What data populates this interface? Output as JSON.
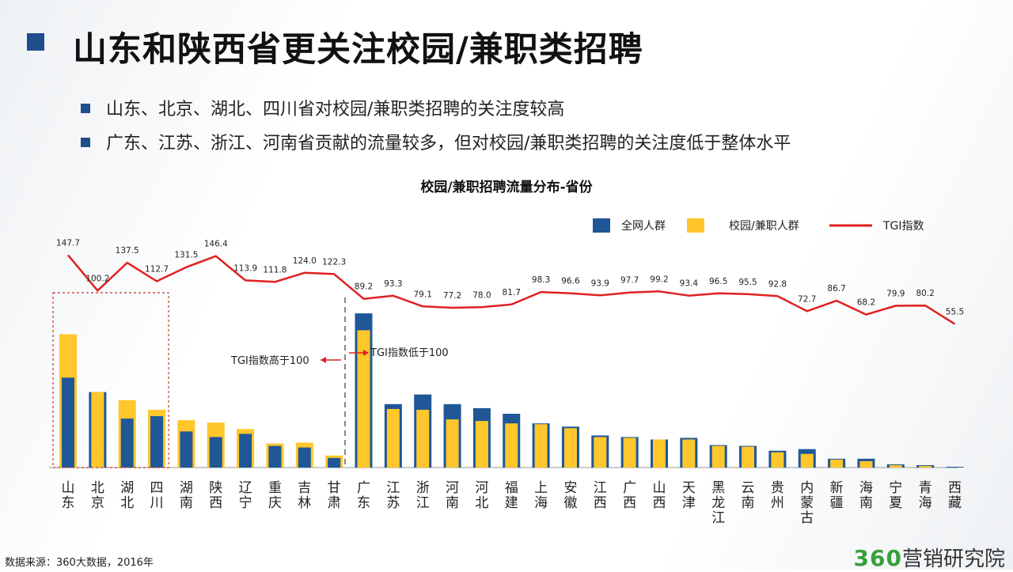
{
  "slide": {
    "title": "山东和陕西省更关注校园/兼职类招聘",
    "bullets": [
      "山东、北京、湖北、四川省对校园/兼职类招聘的关注度较高",
      "广东、江苏、浙江、河南省贡献的流量较多，但对校园/兼职类招聘的关注度低于整体水平"
    ],
    "source": "数据来源：360大数据，2016年",
    "logo_num": "360",
    "logo_text": "营销研究院"
  },
  "colors": {
    "blue": "#1f5797",
    "yellow": "#ffc72c",
    "red": "#e02020",
    "accent": "#1f4e8c"
  },
  "chart_data": {
    "type": "bar",
    "title": "校园/兼职招聘流量分布-省份",
    "categories": [
      "山东",
      "北京",
      "湖北",
      "四川",
      "湖南",
      "陕西",
      "辽宁",
      "重庆",
      "吉林",
      "甘肃",
      "广东",
      "江苏",
      "浙江",
      "河南",
      "河北",
      "福建",
      "上海",
      "安徽",
      "江西",
      "广西",
      "山西",
      "天津",
      "黑龙江",
      "云南",
      "贵州",
      "内蒙古",
      "新疆",
      "海南",
      "宁夏",
      "青海",
      "西藏"
    ],
    "series": [
      {
        "name": "全网人群",
        "type": "bar",
        "values": [
          5.6,
          4.7,
          3.05,
          3.2,
          2.25,
          1.9,
          2.1,
          1.35,
          1.25,
          0.6,
          9.6,
          3.95,
          4.55,
          3.95,
          3.7,
          3.35,
          2.75,
          2.55,
          2.0,
          1.9,
          1.75,
          1.85,
          1.4,
          1.35,
          1.05,
          1.15,
          0.55,
          0.55,
          0.2,
          0.15,
          0.05
        ]
      },
      {
        "name": "校园/兼职人群",
        "type": "bar",
        "values": [
          8.3,
          4.7,
          4.2,
          3.6,
          2.95,
          2.8,
          2.4,
          1.5,
          1.55,
          0.75,
          8.55,
          3.65,
          3.6,
          3.0,
          2.9,
          2.75,
          2.7,
          2.45,
          1.9,
          1.85,
          1.75,
          1.75,
          1.35,
          1.3,
          0.95,
          0.85,
          0.5,
          0.4,
          0.15,
          0.1,
          0.0
        ]
      },
      {
        "name": "TGI指数",
        "type": "line",
        "values": [
          147.7,
          100.2,
          137.5,
          112.7,
          131.5,
          146.4,
          113.9,
          111.8,
          124.0,
          122.3,
          89.2,
          93.3,
          79.1,
          77.2,
          78.0,
          81.7,
          98.3,
          96.6,
          93.9,
          97.7,
          99.2,
          93.4,
          96.5,
          95.5,
          92.8,
          72.7,
          86.7,
          68.2,
          79.9,
          80.2,
          55.5
        ]
      }
    ],
    "tgi_labels": [
      "147.7",
      "100.2",
      "137.5",
      "112.7",
      "131.5",
      "146.4",
      "113.9",
      "111.8",
      "124.0",
      "122.3",
      "89.2",
      "93.3",
      "79.1",
      "77.2",
      "78.0",
      "81.7",
      "98.3",
      "96.6",
      "93.9",
      "97.7",
      "99.2",
      "93.4",
      "96.5",
      "95.5",
      "92.8",
      "72.7",
      "86.7",
      "68.2",
      "79.9",
      "80.2",
      "55.5"
    ],
    "legend": [
      "全网人群",
      "校园/兼职人群",
      "TGI指数"
    ],
    "legend_position": "top-right",
    "annotations": {
      "above": "TGI指数高于100",
      "below": "TGI指数低于100"
    },
    "grid": false
  }
}
